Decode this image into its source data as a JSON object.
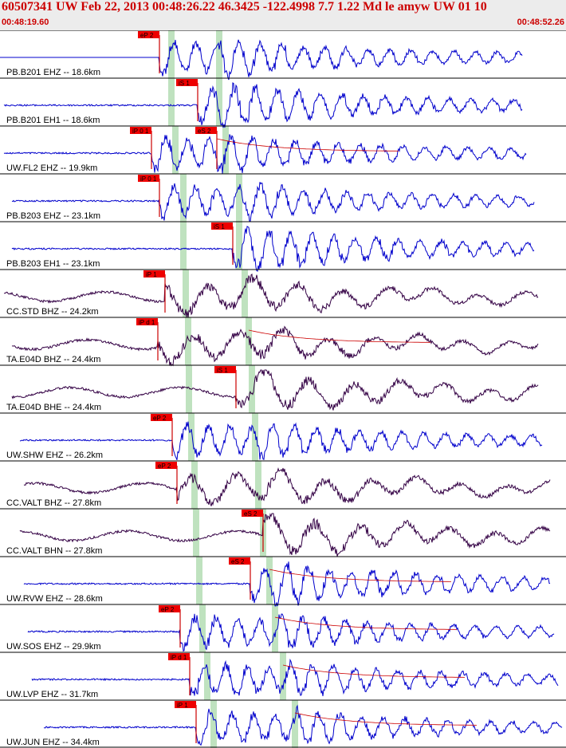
{
  "header": {
    "title": "60507341 UW Feb 22, 2013 00:48:26.22   46.3425 -122.4998  7.7 1.22 Md le amyw UW 01  10",
    "start_time": "00:48:19.60",
    "end_time": "00:48:52.26"
  },
  "colors": {
    "short_period_trace": "#0000cc",
    "broadband_trace": "#330044",
    "pick_box": "#ee0000",
    "pick_line": "#cc0000",
    "theoretical_window": "#bfe2bf",
    "grid": "#000000"
  },
  "traces": [
    {
      "label": "PB.B201 EHZ -- 18.6km",
      "color": "blue",
      "pick": "eP 2",
      "flat": true
    },
    {
      "label": "PB.B201 EH1 -- 18.6km",
      "color": "blue",
      "pick": "iS 1"
    },
    {
      "label": "UW.FL2 EHZ -- 19.9km",
      "color": "blue",
      "pick": "iP 0 1",
      "pick2": "eS 2",
      "coda": true
    },
    {
      "label": "PB.B203 EHZ -- 23.1km",
      "color": "blue",
      "pick": "iP 0 1"
    },
    {
      "label": "PB.B203 EH1 -- 23.1km",
      "color": "blue",
      "pick": "iS 1"
    },
    {
      "label": "CC.STD BHZ -- 24.2km",
      "color": "dark",
      "pick": "iP 1"
    },
    {
      "label": "TA.E04D BHZ -- 24.4km",
      "color": "dark",
      "pick": "iP d 1",
      "coda": true
    },
    {
      "label": "TA.E04D BHE -- 24.4km",
      "color": "dark",
      "pick": "iS 1"
    },
    {
      "label": "UW.SHW EHZ -- 26.2km",
      "color": "blue",
      "pick": "eP 2"
    },
    {
      "label": "CC.VALT BHZ -- 27.8km",
      "color": "dark",
      "pick": "eP 2"
    },
    {
      "label": "CC.VALT BHN -- 27.8km",
      "color": "dark",
      "pick": "eS 2"
    },
    {
      "label": "UW.RVW EHZ -- 28.6km",
      "color": "blue",
      "pick": "eS 2",
      "coda": true
    },
    {
      "label": "UW.SOS EHZ -- 29.9km",
      "color": "blue",
      "pick": "eP 2",
      "coda": true
    },
    {
      "label": "UW.LVP EHZ -- 31.7km",
      "color": "blue",
      "pick": "iP d 1",
      "coda": true
    },
    {
      "label": "UW.JUN EHZ -- 34.4km",
      "color": "blue",
      "pick": "iP 1",
      "coda": true
    }
  ]
}
